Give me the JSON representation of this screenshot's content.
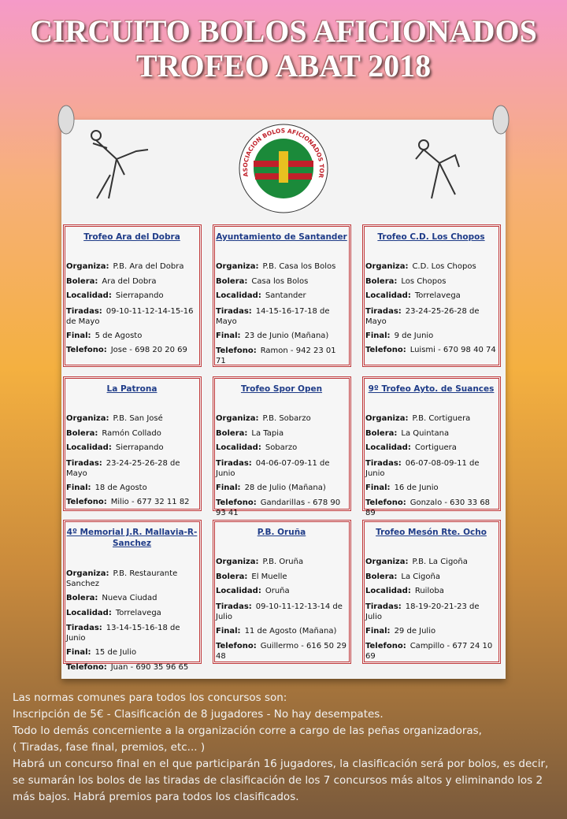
{
  "header": {
    "title_lines": [
      "CIRCUITO BOLOS AFICIONADOS",
      "TROFEO ABAT 2018"
    ]
  },
  "logo": {
    "text": "ASOCIACION BOLOS AFICIONADOS TORRELAVEGA"
  },
  "field_labels": [
    "Organiza:",
    "Bolera:",
    "Localidad:",
    "Tiradas:",
    "Final:",
    "Telefono:"
  ],
  "cards": [
    {
      "title": "Trofeo Ara del Dobra",
      "values": [
        "P.B. Ara del Dobra",
        "Ara del Dobra",
        "Sierrapando",
        "09-10-11-12-14-15-16 de Mayo",
        "5 de Agosto",
        "Jose - 698 20 20 69"
      ]
    },
    {
      "title": "Ayuntamiento de Santander",
      "values": [
        "P.B. Casa los Bolos",
        "Casa los Bolos",
        "Santander",
        "14-15-16-17-18 de Mayo",
        "23 de Junio (Mañana)",
        "Ramon - 942 23 01 71"
      ]
    },
    {
      "title": "Trofeo C.D. Los Chopos",
      "values": [
        "C.D. Los Chopos",
        "Los Chopos",
        "Torrelavega",
        "23-24-25-26-28 de Mayo",
        "9 de Junio",
        "Luismi - 670 98 40 74"
      ]
    },
    {
      "title": "La Patrona",
      "values": [
        "P.B. San José",
        "Ramón Collado",
        "Sierrapando",
        "23-24-25-26-28 de Mayo",
        "18 de Agosto",
        "Milio - 677 32 11 82"
      ]
    },
    {
      "title": "Trofeo Spor Open",
      "values": [
        "P.B. Sobarzo",
        "La Tapia",
        "Sobarzo",
        "04-06-07-09-11 de Junio",
        "28 de Julio (Mañana)",
        "Gandarillas - 678 90 93 41"
      ]
    },
    {
      "title": "9º Trofeo Ayto. de Suances",
      "values": [
        "P.B. Cortiguera",
        "La Quintana",
        "Cortiguera",
        "06-07-08-09-11 de Junio",
        "16 de Junio",
        "Gonzalo - 630 33 68 89"
      ]
    },
    {
      "title": "4º Memorial J.R. Mallavia-R-Sanchez",
      "values": [
        "P.B. Restaurante Sanchez",
        "Nueva Ciudad",
        "Torrelavega",
        "13-14-15-16-18 de Junio",
        "15 de Julio",
        "Juan - 690 35 96 65"
      ]
    },
    {
      "title": "P.B. Oruña",
      "values": [
        "P.B. Oruña",
        "El Muelle",
        "Oruña",
        "09-10-11-12-13-14 de Julio",
        "11 de Agosto (Mañana)",
        "Guillermo - 616 50 29 48"
      ]
    },
    {
      "title": "Trofeo Mesón Rte. Ocho",
      "values": [
        "P.B. La Cigoña",
        "La Cigoña",
        "Ruiloba",
        "18-19-20-21-23 de Julio",
        "29 de Julio",
        "Campillo - 677 24 10 69"
      ]
    }
  ],
  "footer": {
    "lines": [
      "Las normas comunes para todos los concursos son:",
      "Inscripción de 5€ - Clasificación de 8 jugadores - No hay desempates.",
      "Todo lo demás concerniente a la organización corre a cargo de las peñas organizadoras,",
      "( Tiradas, fase final, premios, etc... )",
      "Habrá un concurso final en el que participarán 16 jugadores, la clasificación será por bolos, es decir,",
      "se sumarán los bolos de las tiradas de clasificación de los 7 concursos más altos y eliminando los 2",
      "más bajos. Habrá premios para todos los clasificados."
    ]
  }
}
